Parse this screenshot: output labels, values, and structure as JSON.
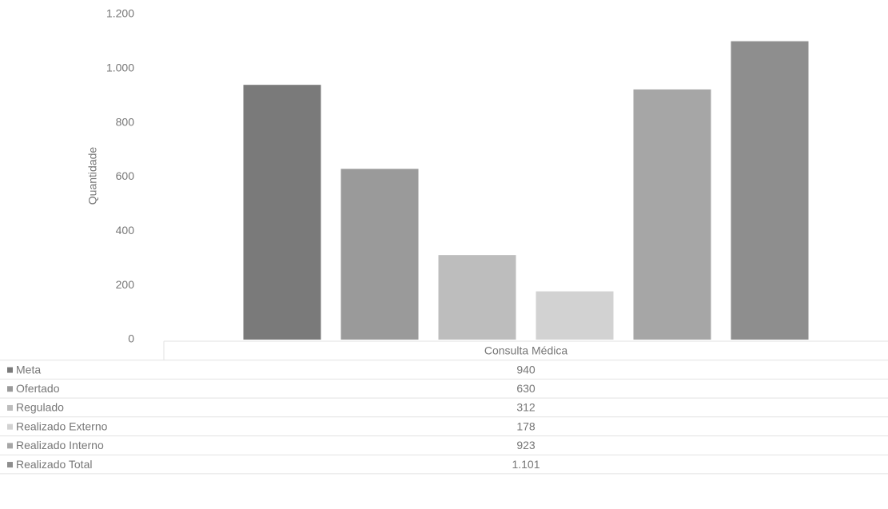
{
  "chart_data": {
    "type": "bar",
    "y_label": "Quantidade",
    "categories": [
      "Consulta Médica"
    ],
    "series": [
      {
        "name": "Meta",
        "color": "#7a7a7a",
        "values": [
          940
        ]
      },
      {
        "name": "Ofertado",
        "color": "#9a9a9a",
        "values": [
          630
        ]
      },
      {
        "name": "Regulado",
        "color": "#bdbdbd",
        "values": [
          312
        ]
      },
      {
        "name": "Realizado Externo",
        "color": "#d2d2d2",
        "values": [
          178
        ]
      },
      {
        "name": "Realizado Interno",
        "color": "#a6a6a6",
        "values": [
          923
        ]
      },
      {
        "name": "Realizado Total",
        "color": "#8e8e8e",
        "values": [
          1101
        ],
        "value_labels": [
          "1.101"
        ]
      }
    ],
    "ylim": [
      0,
      1200
    ],
    "yticks": [
      0,
      200,
      400,
      600,
      800,
      {
        "value": 1000,
        "label": "1.000"
      },
      {
        "value": 1200,
        "label": "1.200"
      }
    ],
    "grid": false,
    "legend": "table"
  }
}
